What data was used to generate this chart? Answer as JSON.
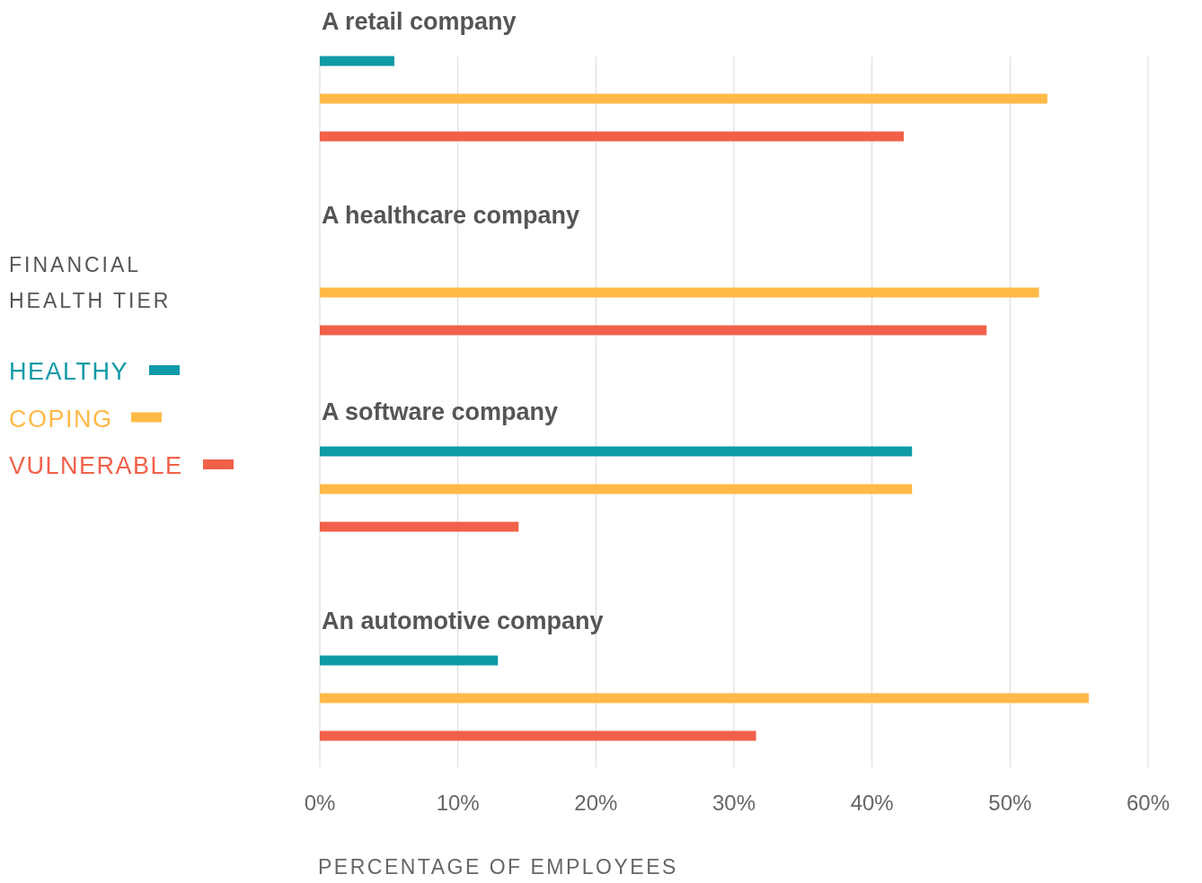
{
  "chart_data": {
    "type": "bar",
    "orientation": "horizontal",
    "categories": [
      "A retail company",
      "A healthcare company",
      "A software company",
      "An automotive company"
    ],
    "legend": "left",
    "legend_title": "FINANCIAL HEALTH TIER",
    "grid": "x",
    "xlim": [
      0,
      60
    ],
    "xticks": [
      {
        "value": 0,
        "label": "0%"
      },
      {
        "value": 10,
        "label": "10%"
      },
      {
        "value": 20,
        "label": "20%"
      },
      {
        "value": 30,
        "label": "30%"
      },
      {
        "value": 40,
        "label": "40%"
      },
      {
        "value": 50,
        "label": "50%"
      },
      {
        "value": 60,
        "label": "60%"
      }
    ],
    "xlabel": "PERCENTAGE OF EMPLOYEES",
    "series": [
      {
        "name": "HEALTHY",
        "color": "#0e9aa7",
        "values": [
          5.4,
          null,
          42.9,
          12.9
        ]
      },
      {
        "name": "COPING",
        "color": "#ffb947",
        "values": [
          52.7,
          52.1,
          42.9,
          55.7
        ]
      },
      {
        "name": "VULNERABLE",
        "color": "#f26049",
        "values": [
          42.3,
          48.3,
          14.4,
          31.6
        ]
      }
    ]
  }
}
